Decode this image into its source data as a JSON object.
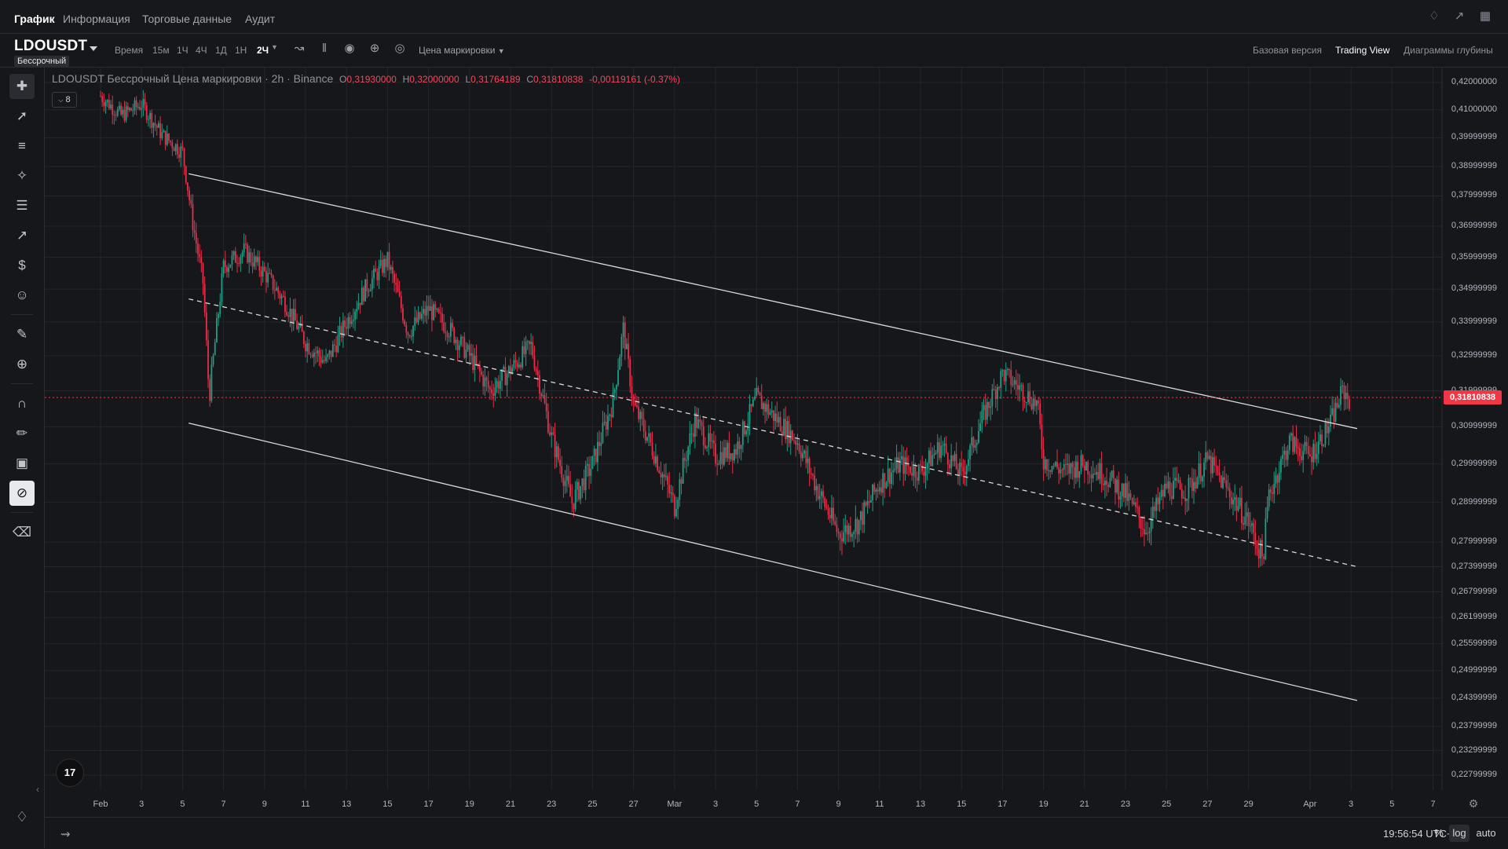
{
  "top_tabs": [
    "График",
    "Информация",
    "Торговые данные",
    "Аудит"
  ],
  "top_icons": [
    "bell-icon",
    "collapse-icon",
    "layout-grid-icon"
  ],
  "symbol": {
    "name": "LDOUSDT",
    "badge": "Бессрочный"
  },
  "toolbar": {
    "time_label": "Время",
    "timeframes": [
      "15м",
      "1Ч",
      "4Ч",
      "1Д",
      "1Н",
      "2Ч"
    ],
    "price_mode": "Цена маркировки",
    "icons": [
      "line-chart-icon",
      "candles-icon",
      "camera-icon",
      "add-indicator-icon",
      "settings-circle-icon"
    ],
    "views": [
      "Базовая версия",
      "Trading View",
      "Диаграммы глубины"
    ]
  },
  "legend": {
    "title": "LDOUSDT Бессрочный Цена маркировки · 2h · Binance",
    "open_key": "O",
    "open": "0,31930000",
    "high_key": "H",
    "high": "0,32000000",
    "low_key": "L",
    "low": "0,31764189",
    "close_key": "C",
    "close": "0,31810838",
    "change": "-0,00119161 (-0.37%)",
    "indicators_count": "8"
  },
  "left_tools": [
    "crosshair-icon",
    "trendline-icon",
    "horizontal-lines-icon",
    "pattern-icon",
    "fib-icon",
    "forecast-icon",
    "price-label-icon",
    "emoji-icon",
    "ruler-icon",
    "zoom-in-icon",
    "magnet-icon",
    "draw-lock-icon",
    "lock-icon",
    "hide-drawings-icon",
    "trash-icon"
  ],
  "chart_data": {
    "type": "candlestick",
    "symbol": "LDOUSDT",
    "interval": "2h",
    "scale": "log",
    "current_price": "0,31810838",
    "y_ticks": [
      "0,42000000",
      "0,41000000",
      "0,39999999",
      "0,38999999",
      "0,37999999",
      "0,36999999",
      "0,35999999",
      "0,34999999",
      "0,33999999",
      "0,32999999",
      "0,31999999",
      "0,30999999",
      "0,29999999",
      "0,28999999",
      "0,27999999",
      "0,27399999",
      "0,26799999",
      "0,26199999",
      "0,25599999",
      "0,24999999",
      "0,24399999",
      "0,23799999",
      "0,23299999",
      "0,22799999"
    ],
    "x_ticks": [
      "Feb",
      "3",
      "5",
      "7",
      "9",
      "11",
      "13",
      "15",
      "17",
      "19",
      "21",
      "23",
      "25",
      "27",
      "Mar",
      "3",
      "5",
      "7",
      "9",
      "11",
      "13",
      "15",
      "17",
      "19",
      "21",
      "23",
      "25",
      "27",
      "29",
      "Apr",
      "3",
      "5",
      "7"
    ],
    "path_points": [
      {
        "day": 0,
        "price": 0.415
      },
      {
        "day": 1,
        "price": 0.408
      },
      {
        "day": 2,
        "price": 0.412
      },
      {
        "day": 3,
        "price": 0.401
      },
      {
        "day": 4,
        "price": 0.395
      },
      {
        "day": 4.5,
        "price": 0.371
      },
      {
        "day": 5,
        "price": 0.352
      },
      {
        "day": 5.3,
        "price": 0.318
      },
      {
        "day": 6,
        "price": 0.357
      },
      {
        "day": 7,
        "price": 0.362
      },
      {
        "day": 8,
        "price": 0.355
      },
      {
        "day": 9,
        "price": 0.346
      },
      {
        "day": 10,
        "price": 0.334
      },
      {
        "day": 11,
        "price": 0.328
      },
      {
        "day": 12,
        "price": 0.34
      },
      {
        "day": 13,
        "price": 0.351
      },
      {
        "day": 14,
        "price": 0.359
      },
      {
        "day": 15,
        "price": 0.337
      },
      {
        "day": 16,
        "price": 0.344
      },
      {
        "day": 17,
        "price": 0.338
      },
      {
        "day": 18,
        "price": 0.33
      },
      {
        "day": 19,
        "price": 0.32
      },
      {
        "day": 20,
        "price": 0.326
      },
      {
        "day": 21,
        "price": 0.333
      },
      {
        "day": 22,
        "price": 0.307
      },
      {
        "day": 23,
        "price": 0.29
      },
      {
        "day": 24,
        "price": 0.3
      },
      {
        "day": 25,
        "price": 0.317
      },
      {
        "day": 25.5,
        "price": 0.338
      },
      {
        "day": 26,
        "price": 0.316
      },
      {
        "day": 27,
        "price": 0.303
      },
      {
        "day": 28,
        "price": 0.289
      },
      {
        "day": 28.5,
        "price": 0.301
      },
      {
        "day": 29,
        "price": 0.312
      },
      {
        "day": 30,
        "price": 0.302
      },
      {
        "day": 31,
        "price": 0.304
      },
      {
        "day": 32,
        "price": 0.318
      },
      {
        "day": 33,
        "price": 0.312
      },
      {
        "day": 34,
        "price": 0.306
      },
      {
        "day": 35,
        "price": 0.293
      },
      {
        "day": 36,
        "price": 0.282
      },
      {
        "day": 37,
        "price": 0.285
      },
      {
        "day": 38,
        "price": 0.295
      },
      {
        "day": 39,
        "price": 0.3
      },
      {
        "day": 40,
        "price": 0.298
      },
      {
        "day": 41,
        "price": 0.305
      },
      {
        "day": 42,
        "price": 0.297
      },
      {
        "day": 43,
        "price": 0.312
      },
      {
        "day": 44,
        "price": 0.325
      },
      {
        "day": 45,
        "price": 0.32
      },
      {
        "day": 45.7,
        "price": 0.316
      },
      {
        "day": 46,
        "price": 0.301
      },
      {
        "day": 47,
        "price": 0.298
      },
      {
        "day": 48,
        "price": 0.3
      },
      {
        "day": 49,
        "price": 0.297
      },
      {
        "day": 50,
        "price": 0.292
      },
      {
        "day": 51,
        "price": 0.283
      },
      {
        "day": 52,
        "price": 0.294
      },
      {
        "day": 53,
        "price": 0.293
      },
      {
        "day": 54,
        "price": 0.301
      },
      {
        "day": 55,
        "price": 0.293
      },
      {
        "day": 56,
        "price": 0.285
      },
      {
        "day": 56.7,
        "price": 0.276
      },
      {
        "day": 57,
        "price": 0.292
      },
      {
        "day": 58,
        "price": 0.306
      },
      {
        "day": 59,
        "price": 0.302
      },
      {
        "day": 60,
        "price": 0.311
      },
      {
        "day": 60.6,
        "price": 0.32
      },
      {
        "day": 61,
        "price": 0.317
      }
    ],
    "channel": {
      "upper": [
        {
          "day": 4.3,
          "price": 0.3875
        },
        {
          "day": 61.3,
          "price": 0.3095
        }
      ],
      "middle_dashed": [
        {
          "day": 4.3,
          "price": 0.347
        },
        {
          "day": 61.3,
          "price": 0.274
        }
      ],
      "lower": [
        {
          "day": 4.3,
          "price": 0.311
        },
        {
          "day": 61.3,
          "price": 0.2435
        }
      ]
    },
    "grid": true
  },
  "bottom": {
    "time": "19:56:54 UTC+3",
    "percent": "%",
    "log": "log",
    "auto": "auto"
  },
  "logo_text": "17"
}
